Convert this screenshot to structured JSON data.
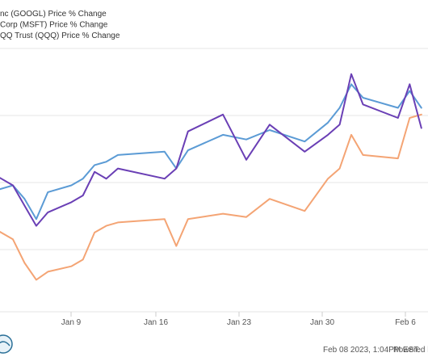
{
  "chart_data": {
    "type": "line",
    "title": "",
    "xlabel": "",
    "ylabel": "",
    "x_ticks": [
      "Jan 9",
      "Jan 16",
      "Jan 23",
      "Jan 30",
      "Feb 6"
    ],
    "legend_position": "top-left",
    "grid": "horizontal",
    "series": [
      {
        "name": "nc (GOOGL) Price % Change",
        "color": "#6a3fb5",
        "points": [
          [
            -2,
            12
          ],
          [
            0,
            10
          ],
          [
            1,
            7
          ],
          [
            2,
            4
          ],
          [
            3,
            6
          ],
          [
            5,
            7.5
          ],
          [
            6,
            8.5
          ],
          [
            7,
            12
          ],
          [
            8,
            11
          ],
          [
            9,
            12.5
          ],
          [
            13,
            11
          ],
          [
            14,
            12.5
          ],
          [
            15,
            18
          ],
          [
            18,
            20.5
          ],
          [
            20,
            13.8
          ],
          [
            22,
            19
          ],
          [
            25,
            15
          ],
          [
            27,
            17.5
          ],
          [
            28,
            19
          ],
          [
            29,
            26.5
          ],
          [
            30,
            22
          ],
          [
            33,
            20
          ],
          [
            34,
            25
          ],
          [
            35,
            18.5
          ]
        ]
      },
      {
        "name": "Corp (MSFT) Price % Change",
        "color": "#5b9bd5",
        "points": [
          [
            -2,
            9
          ],
          [
            0,
            10
          ],
          [
            1,
            8
          ],
          [
            2,
            5
          ],
          [
            3,
            9
          ],
          [
            5,
            10
          ],
          [
            6,
            11
          ],
          [
            7,
            13
          ],
          [
            8,
            13.5
          ],
          [
            9,
            14.5
          ],
          [
            13,
            15
          ],
          [
            14,
            12.5
          ],
          [
            15,
            15.2
          ],
          [
            18,
            17.5
          ],
          [
            20,
            16.8
          ],
          [
            22,
            18.2
          ],
          [
            25,
            16.5
          ],
          [
            27,
            19.3
          ],
          [
            28,
            21.5
          ],
          [
            29,
            25
          ],
          [
            30,
            23
          ],
          [
            33,
            21.5
          ],
          [
            34,
            24
          ],
          [
            35,
            21.5
          ]
        ]
      },
      {
        "name": "QQ Trust (QQQ) Price % Change",
        "color": "#f4a474",
        "points": [
          [
            -2,
            4
          ],
          [
            0,
            2
          ],
          [
            1,
            -1.5
          ],
          [
            2,
            -4
          ],
          [
            3,
            -2.8
          ],
          [
            5,
            -2
          ],
          [
            6,
            -1
          ],
          [
            7,
            3
          ],
          [
            8,
            4
          ],
          [
            9,
            4.5
          ],
          [
            13,
            5
          ],
          [
            14,
            1
          ],
          [
            15,
            5
          ],
          [
            18,
            5.8
          ],
          [
            20,
            5.3
          ],
          [
            22,
            8
          ],
          [
            25,
            6.2
          ],
          [
            27,
            11
          ],
          [
            28,
            12.5
          ],
          [
            29,
            17.5
          ],
          [
            30,
            14.5
          ],
          [
            33,
            14
          ],
          [
            34,
            20
          ],
          [
            35,
            20.5
          ]
        ]
      }
    ]
  },
  "footer": {
    "timestamp": "Feb 08 2023, 1:04PM EST.",
    "powered": "Powered by"
  }
}
